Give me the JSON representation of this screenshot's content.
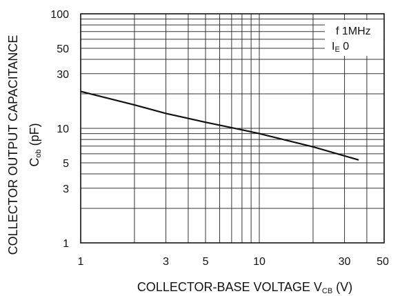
{
  "chart_data": {
    "type": "line",
    "title": "",
    "xscale": "log",
    "yscale": "log",
    "xlim": [
      1,
      50
    ],
    "ylim": [
      1,
      100
    ],
    "x_ticks": [
      1,
      3,
      5,
      10,
      30,
      50
    ],
    "x_tick_labels": [
      "1",
      "3",
      "5",
      "10",
      "30",
      "50"
    ],
    "y_ticks": [
      1,
      3,
      5,
      10,
      30,
      50,
      100
    ],
    "y_tick_labels": [
      "1",
      "3",
      "5",
      "10",
      "30",
      "50",
      "100"
    ],
    "xlabel": {
      "main": "COLLECTOR-BASE VOLTAGE V",
      "sub": "CB",
      "unit": " (V)"
    },
    "ylabel_line1": "COLLECTOR OUTPUT CAPACITANCE",
    "ylabel_line2": {
      "main": "C",
      "sub": "ob",
      "unit": " (pF)"
    },
    "grid": true,
    "legend": {
      "line1": "f  1MHz",
      "line2": {
        "main": "I",
        "sub": "E",
        "rest": "  0"
      },
      "placement": "top-right"
    },
    "series": [
      {
        "x": [
          1,
          2,
          3,
          5,
          8,
          10,
          20,
          36
        ],
        "y": [
          21,
          16,
          13.5,
          11.3,
          9.7,
          9.0,
          6.9,
          5.3
        ]
      }
    ]
  }
}
